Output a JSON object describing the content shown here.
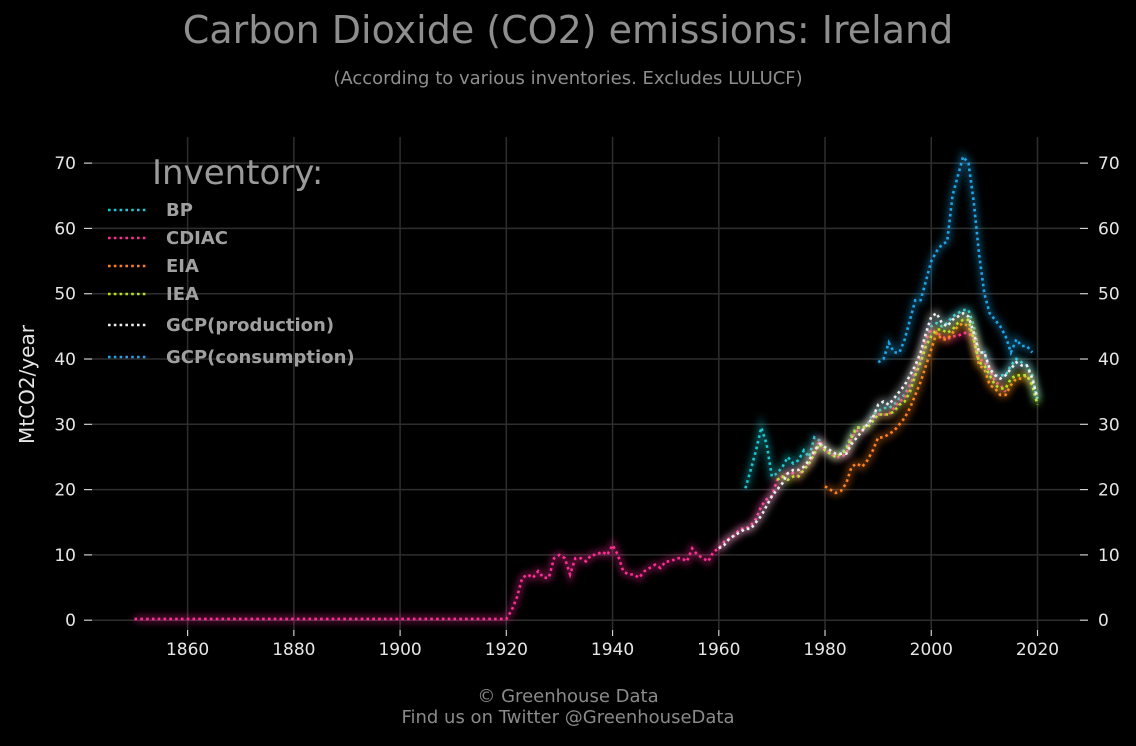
{
  "header": {
    "title": "Carbon Dioxide (CO2) emissions: Ireland",
    "subtitle": "(According to various inventories. Excludes LULUCF)"
  },
  "footer": {
    "line1": "© Greenhouse Data",
    "line2": "Find us on Twitter @GreenhouseData"
  },
  "chart_data": {
    "type": "line",
    "title": "Carbon Dioxide (CO2) emissions: Ireland",
    "subtitle": "(According to various inventories. Excludes LULUCF)",
    "xlabel": "",
    "ylabel": "MtCO2/year",
    "xlim": [
      1842,
      2028
    ],
    "ylim": [
      -1.5,
      74
    ],
    "x_ticks": [
      1860,
      1880,
      1900,
      1920,
      1940,
      1960,
      1980,
      2000,
      2020
    ],
    "y_ticks": [
      0,
      10,
      20,
      30,
      40,
      50,
      60,
      70
    ],
    "grid": true,
    "legend": {
      "title": "Inventory:",
      "placement": "top-left"
    },
    "series": [
      {
        "name": "BP",
        "color": "#19c8d2",
        "x": [
          1965,
          1966,
          1967,
          1968,
          1969,
          1970,
          1971,
          1972,
          1973,
          1974,
          1975,
          1976,
          1977,
          1978,
          1979,
          1980,
          1981,
          1982,
          1983,
          1984,
          1985,
          1986,
          1987,
          1988,
          1989,
          1990,
          1991,
          1992,
          1993,
          1994,
          1995,
          1996,
          1997,
          1998,
          1999,
          2000,
          2001,
          2002,
          2003,
          2004,
          2005,
          2006,
          2007,
          2008,
          2009,
          2010,
          2011,
          2012,
          2013,
          2014,
          2015,
          2016,
          2017,
          2018,
          2019,
          2020
        ],
        "y": [
          20.2,
          23,
          26,
          29.5,
          27,
          22,
          22.5,
          23.5,
          25,
          24,
          24.5,
          26,
          25,
          28,
          27.5,
          26,
          25.5,
          25,
          25.5,
          26.5,
          28.5,
          29.5,
          29.5,
          30,
          31.5,
          32,
          32.5,
          32.5,
          33,
          34,
          34.5,
          36,
          38,
          40,
          43,
          45,
          45.5,
          45,
          45.5,
          46.5,
          47,
          47.5,
          47.5,
          45,
          41,
          41,
          38,
          37.5,
          37.5,
          37.5,
          39,
          40,
          39.5,
          39,
          37.5,
          33.5
        ]
      },
      {
        "name": "CDIAC",
        "color": "#ff2d95",
        "x": [
          1850,
          1860,
          1870,
          1880,
          1890,
          1900,
          1910,
          1919,
          1920,
          1921,
          1922,
          1923,
          1924,
          1925,
          1926,
          1927,
          1928,
          1929,
          1930,
          1931,
          1932,
          1933,
          1934,
          1935,
          1936,
          1937,
          1938,
          1939,
          1940,
          1941,
          1942,
          1943,
          1944,
          1945,
          1946,
          1947,
          1948,
          1949,
          1950,
          1951,
          1952,
          1953,
          1954,
          1955,
          1956,
          1957,
          1958,
          1959,
          1960,
          1961,
          1962,
          1963,
          1964,
          1965,
          1966,
          1967,
          1968,
          1969,
          1970,
          1971,
          1972,
          1973,
          1974,
          1975,
          1976,
          1977,
          1978,
          1979,
          1980,
          1981,
          1982,
          1983,
          1984,
          1985,
          1986,
          1987,
          1988,
          1989,
          1990,
          1991,
          1992,
          1993,
          1994,
          1995,
          1996,
          1997,
          1998,
          1999,
          2000,
          2001,
          2002,
          2003,
          2004,
          2005,
          2006,
          2007,
          2008,
          2009,
          2010,
          2011,
          2012,
          2013,
          2014
        ],
        "y": [
          0.2,
          0.2,
          0.2,
          0.2,
          0.2,
          0.2,
          0.2,
          0.2,
          0.2,
          1.5,
          3.5,
          6.5,
          7,
          6.5,
          7.5,
          6.5,
          6.5,
          9.5,
          10,
          9.5,
          7,
          9.5,
          9.5,
          9,
          10,
          10,
          10.5,
          10,
          11.5,
          10,
          7.5,
          7,
          7,
          6.5,
          7.5,
          8,
          8.5,
          8,
          9,
          9,
          9.5,
          9.5,
          9,
          11,
          10,
          9.5,
          9,
          10.5,
          11,
          12,
          12.5,
          13,
          14,
          14,
          14.5,
          15.5,
          17.5,
          18.5,
          19,
          21.5,
          22,
          22.5,
          22.5,
          22,
          23.5,
          24,
          25.5,
          27.5,
          26,
          25.5,
          25,
          25,
          25.5,
          28,
          29,
          29,
          30,
          31,
          31.5,
          31.5,
          31.5,
          32.5,
          33.5,
          34,
          36,
          38,
          40,
          43,
          44.5,
          44,
          43.5,
          43,
          43.5,
          43.5,
          44,
          44,
          43,
          40,
          39.5,
          38.5,
          36.5,
          36,
          35
        ]
      },
      {
        "name": "EIA",
        "color": "#ff7f1e",
        "x": [
          1980,
          1981,
          1982,
          1983,
          1984,
          1985,
          1986,
          1987,
          1988,
          1989,
          1990,
          1991,
          1992,
          1993,
          1994,
          1995,
          1996,
          1997,
          1998,
          1999,
          2000,
          2001,
          2002,
          2003,
          2004,
          2005,
          2006,
          2007,
          2008,
          2009,
          2010,
          2011,
          2012,
          2013,
          2014,
          2015,
          2016,
          2017,
          2018,
          2019
        ],
        "y": [
          20.5,
          20,
          19.5,
          19.8,
          21,
          23.5,
          24,
          23.5,
          24.5,
          26,
          28,
          28,
          28.5,
          29,
          30,
          31,
          32.5,
          34.5,
          36.5,
          39,
          41.5,
          44,
          43,
          43,
          44,
          45,
          45.5,
          45,
          43,
          39,
          38.5,
          36,
          35.5,
          34.5,
          34.5,
          36,
          37,
          37,
          37.5,
          36
        ]
      },
      {
        "name": "IEA",
        "color": "#b5e01c",
        "x": [
          1971,
          1972,
          1973,
          1974,
          1975,
          1976,
          1977,
          1978,
          1979,
          1980,
          1981,
          1982,
          1983,
          1984,
          1985,
          1986,
          1987,
          1988,
          1989,
          1990,
          1991,
          1992,
          1993,
          1994,
          1995,
          1996,
          1997,
          1998,
          1999,
          2000,
          2001,
          2002,
          2003,
          2004,
          2005,
          2006,
          2007,
          2008,
          2009,
          2010,
          2011,
          2012,
          2013,
          2014,
          2015,
          2016,
          2017,
          2018,
          2019,
          2020
        ],
        "y": [
          21.5,
          22,
          21.5,
          22,
          22,
          23,
          24,
          25.5,
          27,
          26,
          25.5,
          25,
          25.5,
          26,
          28,
          29.5,
          29.5,
          29.5,
          30.5,
          31.5,
          31.5,
          31.5,
          32,
          33,
          33.5,
          35,
          37.5,
          39.5,
          42,
          43.5,
          44.5,
          44.5,
          44,
          44.5,
          45.5,
          46,
          46,
          43,
          39.5,
          39,
          37.5,
          36,
          35.5,
          35.5,
          37,
          37.5,
          37.5,
          37.5,
          36,
          33
        ]
      },
      {
        "name": "GCP(production)",
        "color": "#eeeeee",
        "x": [
          1960,
          1961,
          1962,
          1963,
          1964,
          1965,
          1966,
          1967,
          1968,
          1969,
          1970,
          1971,
          1972,
          1973,
          1974,
          1975,
          1976,
          1977,
          1978,
          1979,
          1980,
          1981,
          1982,
          1983,
          1984,
          1985,
          1986,
          1987,
          1988,
          1989,
          1990,
          1991,
          1992,
          1993,
          1994,
          1995,
          1996,
          1997,
          1998,
          1999,
          2000,
          2001,
          2002,
          2003,
          2004,
          2005,
          2006,
          2007,
          2008,
          2009,
          2010,
          2011,
          2012,
          2013,
          2014,
          2015,
          2016,
          2017,
          2018,
          2019,
          2020
        ],
        "y": [
          11,
          11.5,
          12.5,
          13,
          13.5,
          14,
          14,
          15,
          16,
          17.5,
          19,
          20,
          21,
          22.5,
          23,
          23,
          23.5,
          24.5,
          26,
          27,
          26.5,
          26,
          25.5,
          25.5,
          25.5,
          27,
          28,
          29,
          30,
          31,
          33,
          33.5,
          33,
          34,
          35,
          36,
          37.5,
          39,
          41,
          44,
          46.5,
          47,
          45.5,
          45,
          46,
          46.5,
          47,
          46.5,
          44,
          41,
          41,
          38.5,
          37.5,
          37,
          37.5,
          38.5,
          39.5,
          39,
          39,
          37,
          34
        ]
      },
      {
        "name": "GCP(consumption)",
        "color": "#1ea4e8",
        "x": [
          1990,
          1991,
          1992,
          1993,
          1994,
          1995,
          1996,
          1997,
          1998,
          1999,
          2000,
          2001,
          2002,
          2003,
          2004,
          2005,
          2006,
          2007,
          2008,
          2009,
          2010,
          2011,
          2012,
          2013,
          2014,
          2015,
          2016,
          2017,
          2018,
          2019
        ],
        "y": [
          39.5,
          40,
          42.5,
          41,
          41,
          43,
          46,
          49,
          49,
          52,
          55,
          56.5,
          57.5,
          58,
          65,
          68,
          71,
          70,
          64,
          56,
          50,
          47,
          46,
          45,
          43.5,
          41,
          43,
          42,
          42,
          41
        ]
      }
    ]
  }
}
